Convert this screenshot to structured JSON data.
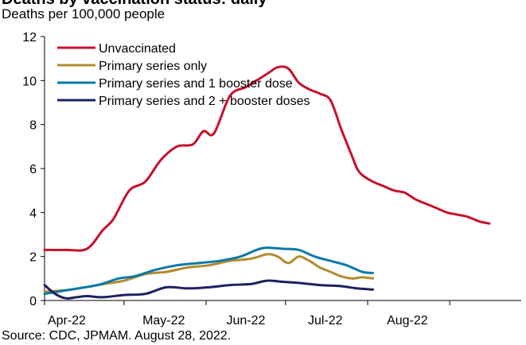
{
  "title": "Deaths by vaccination status: daily",
  "subtitle": "Deaths per 100,000 people",
  "source": "Source: CDC, JPMAM. August 28, 2022.",
  "chart_data": {
    "type": "line",
    "title": "",
    "ylabel": "Deaths per 100,000 people",
    "xlabel": "",
    "ylim": [
      0,
      12
    ],
    "yticks": [
      0,
      2,
      4,
      6,
      8,
      10,
      12
    ],
    "xticks": [
      "Apr-22",
      "May-22",
      "Jun-22",
      "Jul-22",
      "Aug-22"
    ],
    "legend_position": "top-left",
    "x_unit": "days since Apr-1-2022",
    "series": [
      {
        "name": "Unvaccinated",
        "color": "#c8102e",
        "x": [
          0,
          8,
          16,
          22,
          26,
          32,
          38,
          44,
          50,
          56,
          60,
          64,
          70,
          76,
          80,
          84,
          88,
          92,
          96,
          100,
          104,
          108,
          112,
          116,
          118,
          120,
          124,
          128,
          132,
          136,
          140,
          144,
          148,
          152,
          156,
          160,
          164,
          168
        ],
        "y": [
          2.3,
          2.3,
          2.35,
          3.2,
          3.7,
          5.0,
          5.4,
          6.4,
          7.0,
          7.1,
          7.7,
          7.6,
          9.3,
          9.7,
          10.0,
          10.3,
          10.6,
          10.55,
          9.9,
          9.6,
          9.4,
          9.1,
          7.8,
          6.6,
          6.0,
          5.7,
          5.4,
          5.2,
          5.0,
          4.9,
          4.6,
          4.4,
          4.2,
          4.0,
          3.9,
          3.8,
          3.6,
          3.5
        ]
      },
      {
        "name": "Primary series only",
        "color": "#b38a2e",
        "x": [
          0,
          10,
          20,
          30,
          38,
          46,
          54,
          62,
          70,
          78,
          84,
          88,
          92,
          96,
          100,
          104,
          108,
          112,
          116,
          120,
          124
        ],
        "y": [
          0.4,
          0.5,
          0.7,
          0.9,
          1.2,
          1.3,
          1.5,
          1.6,
          1.8,
          1.9,
          2.1,
          2.0,
          1.7,
          2.0,
          1.8,
          1.5,
          1.3,
          1.1,
          1.0,
          1.05,
          1.0
        ]
      },
      {
        "name": "Primary series and 1 booster dose",
        "color": "#0b7aa8",
        "x": [
          0,
          10,
          20,
          28,
          34,
          42,
          50,
          58,
          66,
          74,
          80,
          84,
          90,
          96,
          102,
          108,
          114,
          120,
          124
        ],
        "y": [
          0.3,
          0.5,
          0.7,
          1.0,
          1.1,
          1.4,
          1.6,
          1.7,
          1.8,
          2.0,
          2.3,
          2.4,
          2.35,
          2.3,
          2.0,
          1.8,
          1.6,
          1.3,
          1.25
        ]
      },
      {
        "name": "Primary series and 2 + booster doses",
        "color": "#1f2060",
        "x": [
          0,
          4,
          8,
          12,
          16,
          22,
          30,
          38,
          46,
          54,
          62,
          70,
          78,
          84,
          90,
          96,
          104,
          112,
          118,
          124
        ],
        "y": [
          0.7,
          0.3,
          0.1,
          0.15,
          0.2,
          0.15,
          0.25,
          0.3,
          0.6,
          0.55,
          0.6,
          0.7,
          0.75,
          0.9,
          0.85,
          0.8,
          0.7,
          0.65,
          0.55,
          0.5
        ]
      }
    ]
  }
}
